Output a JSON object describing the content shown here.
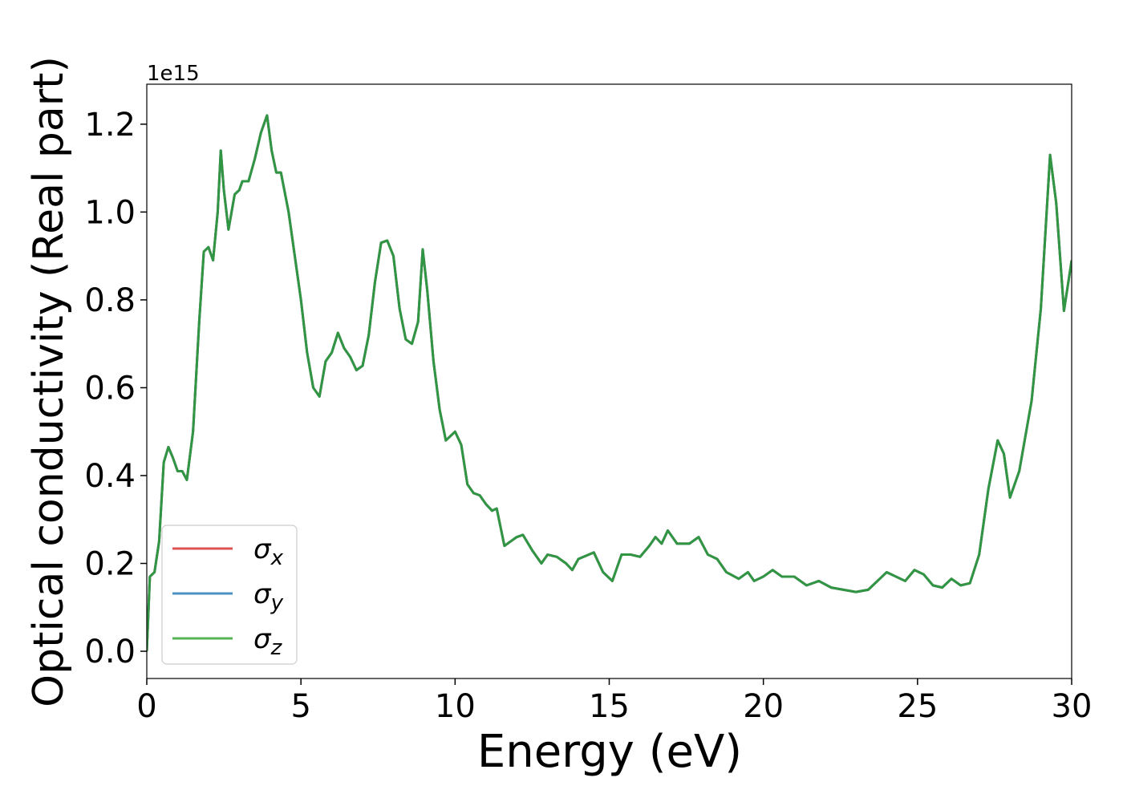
{
  "chart_data": {
    "type": "line",
    "xlabel": "Energy (eV)",
    "ylabel": "Optical conductivity (Real part)",
    "y_offset_label": "1e15",
    "xlim": [
      0,
      30
    ],
    "xticks": [
      0,
      5,
      10,
      15,
      20,
      25,
      30
    ],
    "ylim": [
      -0.062,
      1.291
    ],
    "yticks": [
      {
        "value": 0,
        "label": "0.0"
      },
      0.2,
      0.4,
      0.6,
      0.8,
      {
        "value": 1,
        "label": "1.0"
      },
      1.2
    ],
    "grid": false,
    "legend": "lower left",
    "x": [
      0,
      0.1,
      0.25,
      0.4,
      0.55,
      0.7,
      0.85,
      1.0,
      1.15,
      1.3,
      1.5,
      1.7,
      1.85,
      2.0,
      2.15,
      2.3,
      2.4,
      2.5,
      2.65,
      2.85,
      3.0,
      3.1,
      3.3,
      3.5,
      3.7,
      3.9,
      4.05,
      4.2,
      4.35,
      4.6,
      4.8,
      5.0,
      5.2,
      5.4,
      5.6,
      5.8,
      6.0,
      6.2,
      6.4,
      6.6,
      6.8,
      7.0,
      7.2,
      7.4,
      7.6,
      7.8,
      8.0,
      8.2,
      8.4,
      8.6,
      8.8,
      8.95,
      9.1,
      9.3,
      9.5,
      9.7,
      10.0,
      10.2,
      10.4,
      10.6,
      10.8,
      11.0,
      11.2,
      11.35,
      11.6,
      12.0,
      12.2,
      12.5,
      12.8,
      13.0,
      13.3,
      13.6,
      13.8,
      14.0,
      14.5,
      14.8,
      15.1,
      15.4,
      15.7,
      16.0,
      16.3,
      16.5,
      16.7,
      16.9,
      17.2,
      17.6,
      17.9,
      18.2,
      18.5,
      18.8,
      19.2,
      19.5,
      19.7,
      20.0,
      20.3,
      20.6,
      21.0,
      21.4,
      21.8,
      22.2,
      22.6,
      23.0,
      23.4,
      23.7,
      24.0,
      24.3,
      24.6,
      24.9,
      25.2,
      25.5,
      25.8,
      26.1,
      26.4,
      26.7,
      27.0,
      27.3,
      27.6,
      27.8,
      28.0,
      28.3,
      28.7,
      29.0,
      29.3,
      29.5,
      29.75,
      30.0
    ],
    "series": [
      {
        "name": "σx",
        "color": "#d62728",
        "values": [
          0,
          0.17,
          0.18,
          0.25,
          0.43,
          0.465,
          0.44,
          0.41,
          0.41,
          0.39,
          0.5,
          0.75,
          0.91,
          0.92,
          0.89,
          1.0,
          1.14,
          1.05,
          0.96,
          1.04,
          1.05,
          1.07,
          1.07,
          1.12,
          1.18,
          1.22,
          1.14,
          1.09,
          1.09,
          1.0,
          0.9,
          0.8,
          0.68,
          0.6,
          0.58,
          0.66,
          0.68,
          0.725,
          0.69,
          0.67,
          0.64,
          0.65,
          0.72,
          0.84,
          0.93,
          0.935,
          0.9,
          0.78,
          0.71,
          0.7,
          0.75,
          0.915,
          0.82,
          0.66,
          0.55,
          0.48,
          0.5,
          0.47,
          0.38,
          0.36,
          0.355,
          0.335,
          0.32,
          0.325,
          0.24,
          0.26,
          0.265,
          0.23,
          0.2,
          0.22,
          0.215,
          0.2,
          0.185,
          0.21,
          0.225,
          0.18,
          0.16,
          0.22,
          0.22,
          0.215,
          0.24,
          0.26,
          0.245,
          0.275,
          0.245,
          0.245,
          0.26,
          0.22,
          0.21,
          0.18,
          0.165,
          0.18,
          0.16,
          0.17,
          0.185,
          0.17,
          0.17,
          0.15,
          0.16,
          0.145,
          0.14,
          0.135,
          0.14,
          0.16,
          0.18,
          0.17,
          0.16,
          0.185,
          0.175,
          0.15,
          0.145,
          0.165,
          0.15,
          0.155,
          0.22,
          0.37,
          0.48,
          0.45,
          0.35,
          0.41,
          0.57,
          0.78,
          1.13,
          1.02,
          0.775,
          0.89
        ]
      },
      {
        "name": "σy",
        "color": "#1f77b4",
        "values": [
          0,
          0.17,
          0.18,
          0.25,
          0.43,
          0.465,
          0.44,
          0.41,
          0.41,
          0.39,
          0.5,
          0.75,
          0.91,
          0.92,
          0.89,
          1.0,
          1.14,
          1.05,
          0.96,
          1.04,
          1.05,
          1.07,
          1.07,
          1.12,
          1.18,
          1.22,
          1.14,
          1.09,
          1.09,
          1.0,
          0.9,
          0.8,
          0.68,
          0.6,
          0.58,
          0.66,
          0.68,
          0.725,
          0.69,
          0.67,
          0.64,
          0.65,
          0.72,
          0.84,
          0.93,
          0.935,
          0.9,
          0.78,
          0.71,
          0.7,
          0.75,
          0.915,
          0.82,
          0.66,
          0.55,
          0.48,
          0.5,
          0.47,
          0.38,
          0.36,
          0.355,
          0.335,
          0.32,
          0.325,
          0.24,
          0.26,
          0.265,
          0.23,
          0.2,
          0.22,
          0.215,
          0.2,
          0.185,
          0.21,
          0.225,
          0.18,
          0.16,
          0.22,
          0.22,
          0.215,
          0.24,
          0.26,
          0.245,
          0.275,
          0.245,
          0.245,
          0.26,
          0.22,
          0.21,
          0.18,
          0.165,
          0.18,
          0.16,
          0.17,
          0.185,
          0.17,
          0.17,
          0.15,
          0.16,
          0.145,
          0.14,
          0.135,
          0.14,
          0.16,
          0.18,
          0.17,
          0.16,
          0.185,
          0.175,
          0.15,
          0.145,
          0.165,
          0.15,
          0.155,
          0.22,
          0.37,
          0.48,
          0.45,
          0.35,
          0.41,
          0.57,
          0.78,
          1.13,
          1.02,
          0.775,
          0.89
        ]
      },
      {
        "name": "σz",
        "color": "#2ca02c",
        "values": [
          0,
          0.17,
          0.18,
          0.25,
          0.43,
          0.465,
          0.44,
          0.41,
          0.41,
          0.39,
          0.5,
          0.75,
          0.91,
          0.92,
          0.89,
          1.0,
          1.14,
          1.05,
          0.96,
          1.04,
          1.05,
          1.07,
          1.07,
          1.12,
          1.18,
          1.22,
          1.14,
          1.09,
          1.09,
          1.0,
          0.9,
          0.8,
          0.68,
          0.6,
          0.58,
          0.66,
          0.68,
          0.725,
          0.69,
          0.67,
          0.64,
          0.65,
          0.72,
          0.84,
          0.93,
          0.935,
          0.9,
          0.78,
          0.71,
          0.7,
          0.75,
          0.915,
          0.82,
          0.66,
          0.55,
          0.48,
          0.5,
          0.47,
          0.38,
          0.36,
          0.355,
          0.335,
          0.32,
          0.325,
          0.24,
          0.26,
          0.265,
          0.23,
          0.2,
          0.22,
          0.215,
          0.2,
          0.185,
          0.21,
          0.225,
          0.18,
          0.16,
          0.22,
          0.22,
          0.215,
          0.24,
          0.26,
          0.245,
          0.275,
          0.245,
          0.245,
          0.26,
          0.22,
          0.21,
          0.18,
          0.165,
          0.18,
          0.16,
          0.17,
          0.185,
          0.17,
          0.17,
          0.15,
          0.16,
          0.145,
          0.14,
          0.135,
          0.14,
          0.16,
          0.18,
          0.17,
          0.16,
          0.185,
          0.175,
          0.15,
          0.145,
          0.165,
          0.15,
          0.155,
          0.22,
          0.37,
          0.48,
          0.45,
          0.35,
          0.41,
          0.57,
          0.78,
          1.13,
          1.02,
          0.775,
          0.89
        ]
      }
    ]
  }
}
